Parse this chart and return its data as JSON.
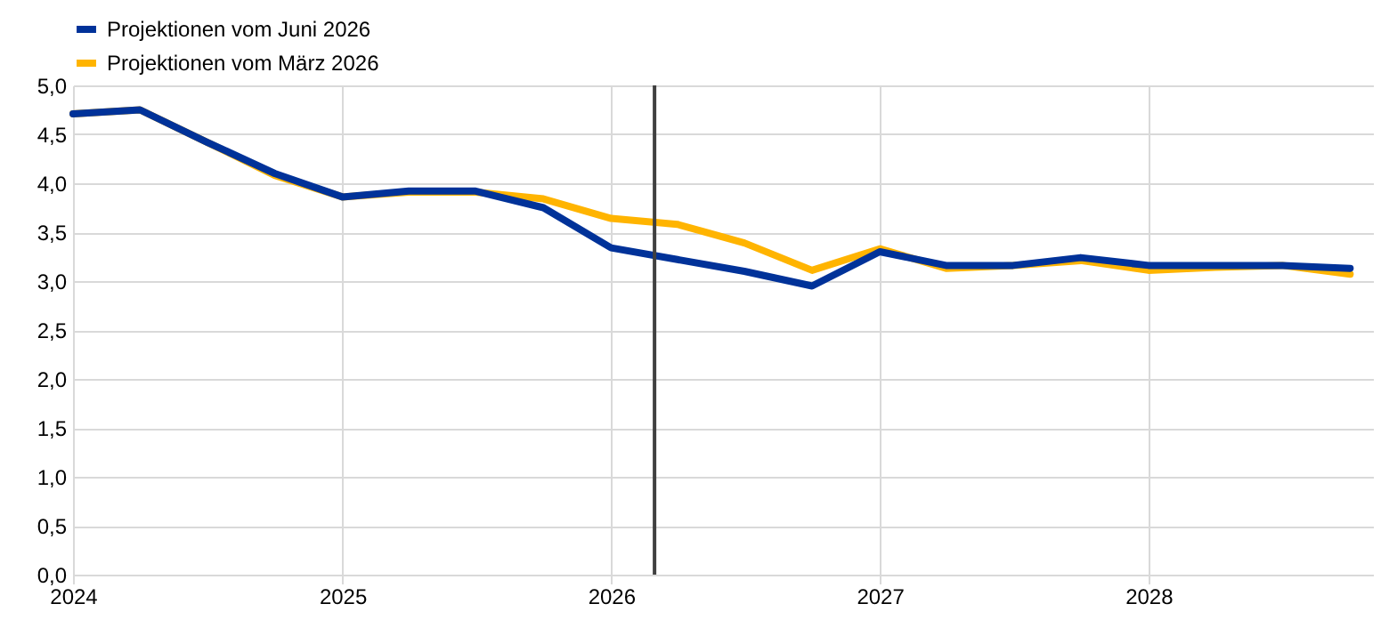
{
  "chart_data": {
    "type": "line",
    "x": [
      "2024-01",
      "2024-04",
      "2024-07",
      "2024-10",
      "2025-01",
      "2025-04",
      "2025-07",
      "2025-10",
      "2026-01",
      "2026-04",
      "2026-07",
      "2026-10",
      "2027-01",
      "2027-04",
      "2027-07",
      "2027-10",
      "2028-01",
      "2028-04",
      "2028-07",
      "2028-10"
    ],
    "series": [
      {
        "name": "Projektionen vom März 2026",
        "color": "#ffb400",
        "values": [
          4.71,
          4.75,
          4.42,
          4.08,
          3.86,
          3.91,
          3.91,
          3.84,
          3.64,
          3.58,
          3.39,
          3.11,
          3.33,
          3.13,
          3.16,
          3.21,
          3.11,
          3.14,
          3.16,
          3.07
        ]
      },
      {
        "name": "Projektionen vom Juni 2026",
        "color": "#003299",
        "values": [
          4.71,
          4.75,
          4.42,
          4.1,
          3.86,
          3.92,
          3.92,
          3.75,
          3.34,
          3.22,
          3.1,
          2.95,
          3.3,
          3.16,
          3.16,
          3.24,
          3.16,
          3.16,
          3.16,
          3.13
        ]
      }
    ],
    "xlim": [
      "2024-01",
      "2028-11"
    ],
    "xticks": [
      "2024",
      "2025",
      "2026",
      "2027",
      "2028"
    ],
    "ylim": [
      0,
      5
    ],
    "yticks": [
      {
        "value": 0,
        "label": "0,0"
      },
      {
        "value": 0.5,
        "label": "0,5"
      },
      {
        "value": 1,
        "label": "1,0"
      },
      {
        "value": 1.5,
        "label": "1,5"
      },
      {
        "value": 2,
        "label": "2,0"
      },
      {
        "value": 2.5,
        "label": "2,5"
      },
      {
        "value": 3,
        "label": "3,0"
      },
      {
        "value": 3.5,
        "label": "3,5"
      },
      {
        "value": 4,
        "label": "4,0"
      },
      {
        "value": 4.5,
        "label": "4,5"
      },
      {
        "value": 5,
        "label": "5,0"
      }
    ],
    "ref_lines": [
      {
        "axis": "x",
        "value": "2026-03",
        "color": "#404040"
      }
    ],
    "grid": true,
    "legend": "top left",
    "line_style": "solid"
  }
}
